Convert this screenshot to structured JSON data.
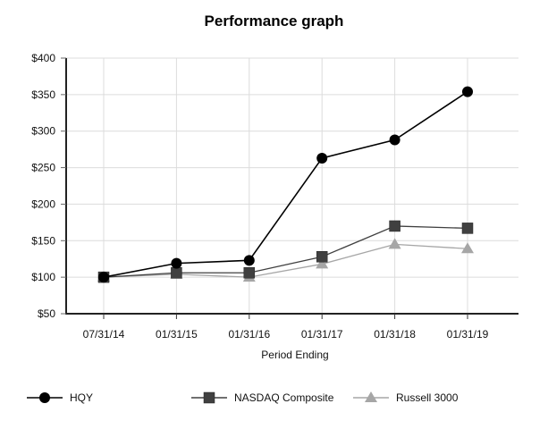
{
  "title": "Performance graph",
  "chart_data": {
    "type": "line",
    "title": "Performance graph",
    "xlabel": "Period Ending",
    "ylabel": "",
    "categories": [
      "07/31/14",
      "01/31/15",
      "01/31/16",
      "01/31/17",
      "01/31/18",
      "01/31/19"
    ],
    "ylim": [
      50,
      400
    ],
    "yticks": [
      50,
      100,
      150,
      200,
      250,
      300,
      350,
      400
    ],
    "ytick_labels": [
      "$50",
      "$100",
      "$150",
      "$200",
      "$250",
      "$300",
      "$350",
      "$400"
    ],
    "grid": true,
    "legend_position": "bottom",
    "series": [
      {
        "name": "HQY",
        "marker": "circle",
        "color": "#000000",
        "values": [
          100,
          119,
          123,
          263,
          288,
          354
        ]
      },
      {
        "name": "NASDAQ Composite",
        "marker": "square",
        "color": "#404040",
        "values": [
          100,
          106,
          106,
          128,
          170,
          167
        ]
      },
      {
        "name": "Russell 3000",
        "marker": "triangle",
        "color": "#a6a6a6",
        "values": [
          100,
          104,
          100,
          118,
          145,
          139
        ]
      }
    ]
  },
  "legend": [
    {
      "label": "HQY"
    },
    {
      "label": "NASDAQ Composite"
    },
    {
      "label": "Russell 3000"
    }
  ]
}
